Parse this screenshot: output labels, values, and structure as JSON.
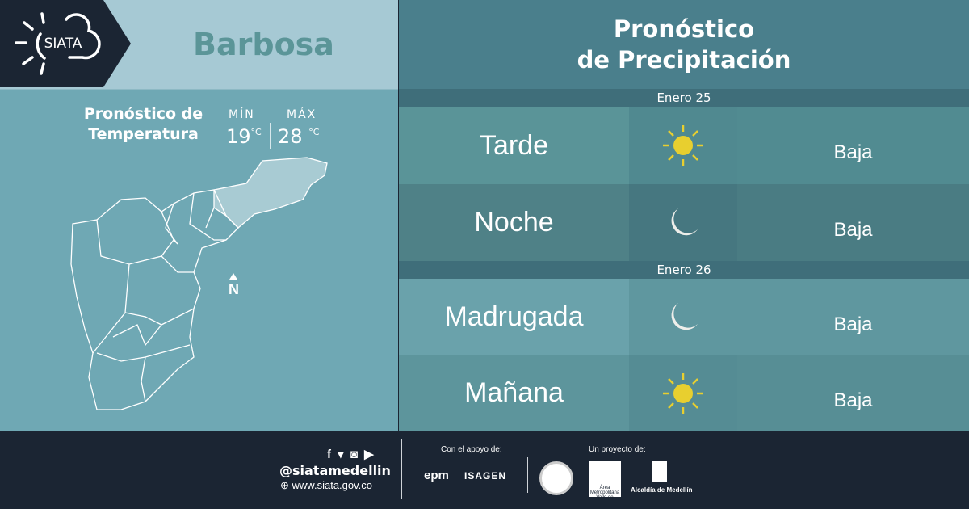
{
  "header": {
    "logo_text": "SIATA",
    "city": "Barbosa",
    "title_line1": "Pronóstico",
    "title_line2": "de Precipitación"
  },
  "temperature": {
    "title_line1": "Pronóstico de",
    "title_line2": "Temperatura",
    "min_label": "MÍN",
    "max_label": "MÁX",
    "min_value": "19",
    "max_value": "28",
    "unit": "°C"
  },
  "map": {
    "north_label": "N"
  },
  "forecast": [
    {
      "date": "Enero 25",
      "periods": [
        {
          "period": "Tarde",
          "icon": "sun-icon",
          "level": "Baja"
        },
        {
          "period": "Noche",
          "icon": "moon-icon",
          "level": "Baja"
        }
      ]
    },
    {
      "date": "Enero 26",
      "periods": [
        {
          "period": "Madrugada",
          "icon": "moon-icon",
          "level": "Baja"
        },
        {
          "period": "Mañana",
          "icon": "sun-icon",
          "level": "Baja"
        }
      ]
    }
  ],
  "footer": {
    "handle": "@siatamedellin",
    "website": "www.siata.gov.co",
    "support_label": "Con el apoyo de:",
    "project_label": "Un proyecto de:",
    "sponsors": [
      "epm",
      "ISAGEN"
    ],
    "partners": [
      "Área Metropolitana Valle de Aburrá",
      "Alcaldía de Medellín"
    ]
  },
  "colors": {
    "sun": "#e8cf2f",
    "moon": "#eeeeea",
    "footer_bg": "#1b2533"
  }
}
